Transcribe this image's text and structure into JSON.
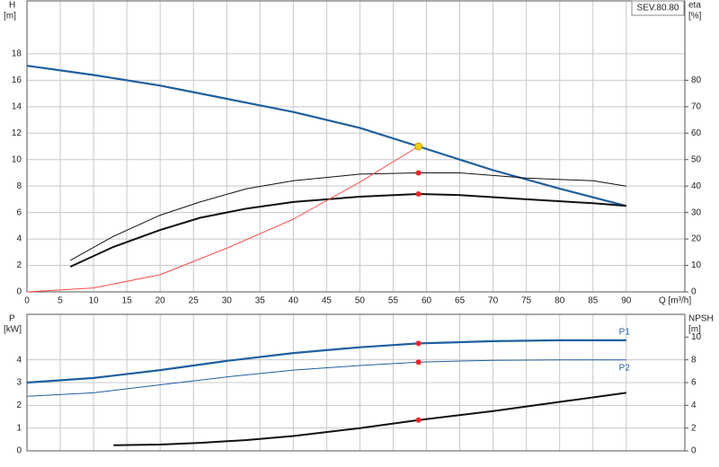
{
  "chart_data": [
    {
      "type": "line",
      "title": "SEV.80.80",
      "xlabel": "Q [m³/h]",
      "ylabel": "H",
      "yunit": "[m]",
      "y2label": "eta",
      "y2unit": "[%]",
      "xlim": [
        0,
        98.8
      ],
      "xticks": [
        0,
        5,
        10,
        15,
        20,
        25,
        30,
        35,
        40,
        45,
        50,
        55,
        60,
        65,
        70,
        75,
        80,
        85,
        90
      ],
      "show_xtick_labels": true,
      "ylim": [
        0,
        22
      ],
      "yticks": [
        0,
        2,
        4,
        6,
        8,
        10,
        12,
        14,
        16,
        18
      ],
      "y2lim": [
        0,
        110
      ],
      "y2ticks": [
        0,
        10,
        20,
        30,
        40,
        50,
        60,
        70,
        80
      ],
      "grid": true,
      "series": [
        {
          "color": "#1f5fa0",
          "width": 2.2,
          "x": [
            0,
            10,
            20,
            30,
            40,
            50,
            58.8,
            70,
            80,
            90
          ],
          "values": [
            17.1,
            16.4,
            15.6,
            14.6,
            13.6,
            12.4,
            11.0,
            9.2,
            7.8,
            6.5
          ]
        },
        {
          "color": "#111111",
          "width": 1,
          "axis": "y2",
          "x": [
            6.5,
            13,
            20,
            26,
            33,
            40,
            50,
            58.8,
            65,
            75,
            85,
            90
          ],
          "values": [
            11.9,
            21,
            29,
            34,
            39,
            42,
            44.5,
            45,
            45,
            43,
            42,
            40
          ]
        },
        {
          "color": "#111111",
          "width": 2,
          "axis": "y2",
          "x": [
            6.5,
            13,
            20,
            26,
            33,
            40,
            50,
            58.8,
            65,
            75,
            85,
            90
          ],
          "values": [
            9.5,
            17,
            23.4,
            28,
            31.5,
            34,
            36,
            37,
            36.6,
            35,
            33.5,
            32.5
          ]
        },
        {
          "color": "#ff4a4a",
          "width": 1,
          "x": [
            0,
            10,
            20,
            30,
            40,
            50,
            58.8
          ],
          "values": [
            0,
            0.3,
            1.3,
            3.3,
            5.5,
            8.3,
            11.0
          ]
        }
      ],
      "markers": [
        {
          "x": 58.8,
          "value": 11.0,
          "color": "#f5d000"
        },
        {
          "x": 58.8,
          "value": 45,
          "axis": "y2",
          "color": "#ff2020"
        },
        {
          "x": 58.8,
          "value": 37,
          "axis": "y2",
          "color": "#ff2020"
        }
      ]
    },
    {
      "type": "line",
      "ylabel": "P",
      "yunit": "[kW]",
      "y2label": "NPSH",
      "y2unit": "[m]",
      "xlim": [
        0,
        98.8
      ],
      "xticks": [
        0,
        5,
        10,
        15,
        20,
        25,
        30,
        35,
        40,
        45,
        50,
        55,
        60,
        65,
        70,
        75,
        80,
        85,
        90
      ],
      "show_xtick_labels": false,
      "ylim": [
        0,
        6
      ],
      "yticks": [
        0,
        1,
        2,
        3,
        4
      ],
      "y2lim": [
        0,
        12
      ],
      "y2ticks": [
        0,
        2,
        4,
        6,
        8,
        10
      ],
      "grid": true,
      "series": [
        {
          "name": "P1",
          "color": "#1f5fa0",
          "width": 2.2,
          "x": [
            0,
            10,
            20,
            30,
            40,
            50,
            58.8,
            70,
            80,
            90
          ],
          "values": [
            3.0,
            3.2,
            3.55,
            3.95,
            4.3,
            4.55,
            4.72,
            4.82,
            4.86,
            4.86
          ]
        },
        {
          "name": "P2",
          "color": "#1f5fa0",
          "width": 1,
          "x": [
            0,
            10,
            20,
            30,
            40,
            50,
            58.8,
            70,
            80,
            90
          ],
          "values": [
            2.4,
            2.55,
            2.9,
            3.25,
            3.55,
            3.75,
            3.9,
            3.98,
            4.0,
            4.0
          ]
        },
        {
          "color": "#111111",
          "width": 2,
          "axis": "y2",
          "x": [
            13,
            20,
            26,
            33,
            40,
            50,
            58.8,
            70,
            80,
            90
          ],
          "values": [
            0.5,
            0.55,
            0.7,
            0.95,
            1.3,
            2.0,
            2.7,
            3.5,
            4.3,
            5.1
          ]
        }
      ],
      "markers": [
        {
          "x": 58.8,
          "value": 4.72,
          "color": "#ff2020"
        },
        {
          "x": 58.8,
          "value": 3.9,
          "color": "#ff2020"
        },
        {
          "x": 58.8,
          "value": 2.7,
          "axis": "y2",
          "color": "#ff2020"
        }
      ]
    }
  ]
}
